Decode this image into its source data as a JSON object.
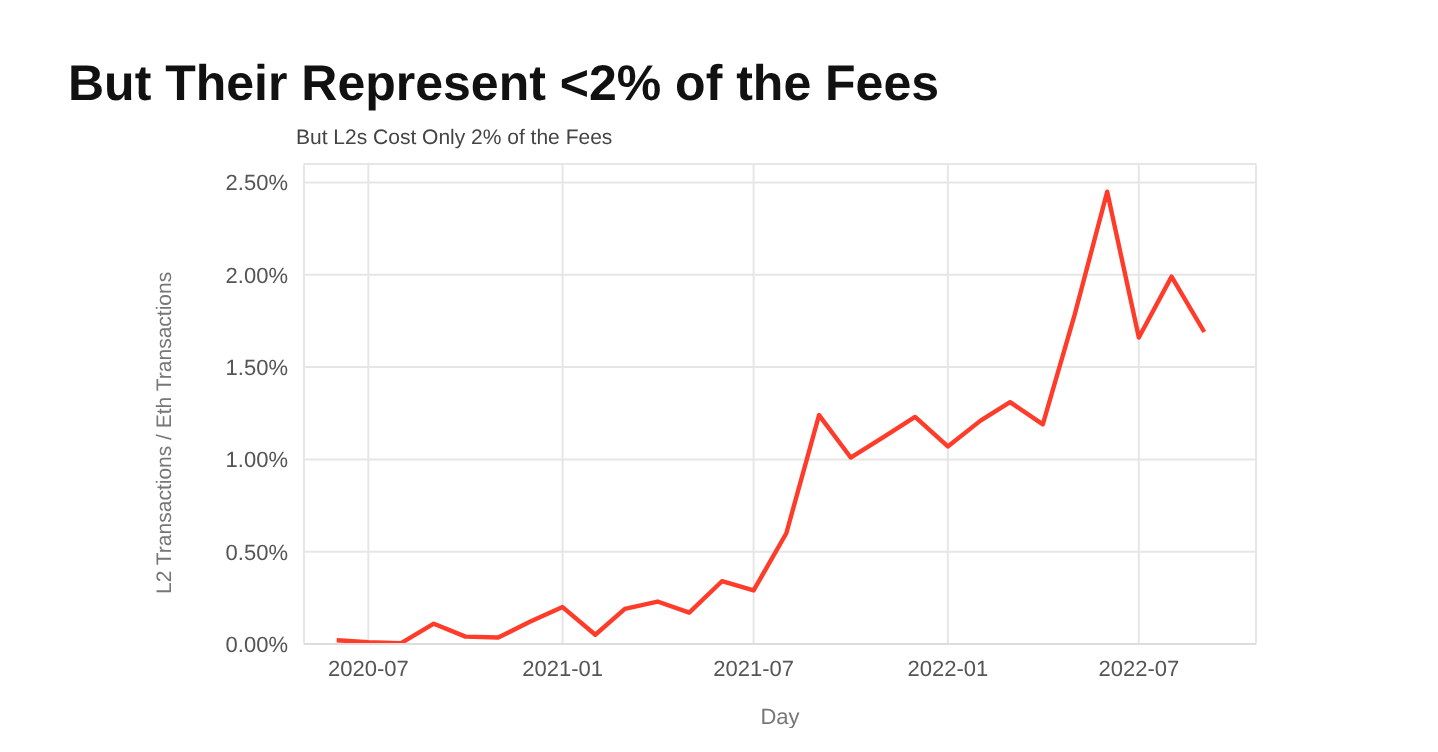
{
  "chart_data": {
    "type": "line",
    "title": "But Their Represent <2% of the Fees",
    "subtitle": "But L2s Cost Only 2% of the Fees",
    "xlabel": "Day",
    "ylabel": "L2 Transactions / Eth Transactions",
    "x": [
      "2020-06",
      "2020-07",
      "2020-08",
      "2020-09",
      "2020-10",
      "2020-11",
      "2020-12",
      "2021-01",
      "2021-02",
      "2021-03",
      "2021-04",
      "2021-05",
      "2021-06",
      "2021-07",
      "2021-08",
      "2021-09",
      "2021-10",
      "2021-11",
      "2021-12",
      "2022-01",
      "2022-02",
      "2022-03",
      "2022-04",
      "2022-05",
      "2022-06",
      "2022-07",
      "2022-08",
      "2022-09"
    ],
    "series": [
      {
        "color": "#ff3b2a",
        "values": [
          0.02,
          0.01,
          0.005,
          0.11,
          0.04,
          0.035,
          0.12,
          0.2,
          0.05,
          0.19,
          0.23,
          0.17,
          0.34,
          0.29,
          0.6,
          1.24,
          1.01,
          1.12,
          1.23,
          1.07,
          1.21,
          1.31,
          1.19,
          1.78,
          2.45,
          1.66,
          1.99,
          1.69
        ]
      }
    ],
    "xlim": [
      "2020-05",
      "2022-10-20"
    ],
    "xticks": [
      "2020-07",
      "2021-01",
      "2021-07",
      "2022-01",
      "2022-07"
    ],
    "ylim": [
      0,
      2.6
    ],
    "yticks": [
      {
        "value": 0,
        "label": "0.00%"
      },
      {
        "value": 0.5,
        "label": "0.50%"
      },
      {
        "value": 1,
        "label": "1.00%"
      },
      {
        "value": 1.5,
        "label": "1.50%"
      },
      {
        "value": 2,
        "label": "2.00%"
      },
      {
        "value": 2.5,
        "label": "2.50%"
      }
    ],
    "grid": true,
    "marker": "none",
    "line_style": "solid",
    "legend": false
  }
}
